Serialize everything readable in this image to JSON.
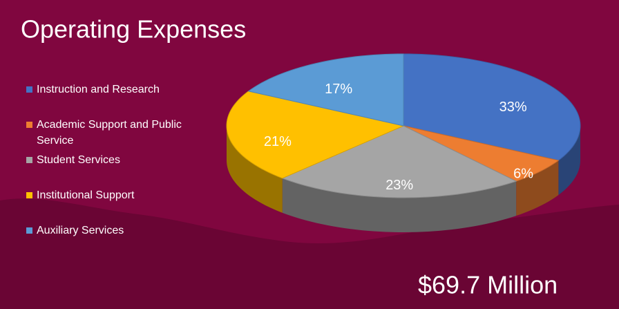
{
  "chart_data": {
    "type": "pie",
    "title": "Operating Expenses",
    "categories": [
      "Instruction and Research",
      "Academic Support and Public Service",
      "Student Services",
      "Institutional Support",
      "Auxiliary Services"
    ],
    "values": [
      33,
      6,
      23,
      21,
      17
    ],
    "value_labels": [
      "33%",
      "6%",
      "23%",
      "21%",
      "17%"
    ],
    "colors": [
      "#4472c4",
      "#ed7d31",
      "#a5a5a5",
      "#ffc000",
      "#5b9bd5"
    ],
    "annotation": "$69.7 Million",
    "legend": "left"
  }
}
